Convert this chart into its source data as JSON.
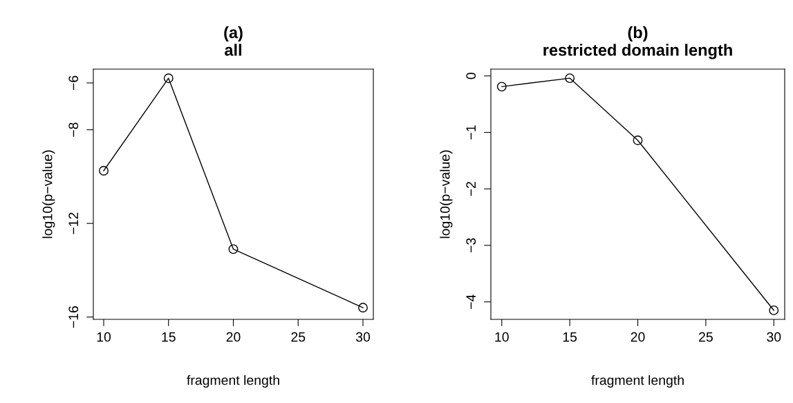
{
  "chart_data": [
    {
      "type": "line",
      "title": "(a)\nall",
      "xlabel": "fragment length",
      "ylabel": "log10(p−value)",
      "x": [
        10,
        15,
        20,
        30
      ],
      "series": [
        {
          "color": "#000000",
          "values": [
            -9.75,
            -5.8,
            -13.1,
            -15.6
          ]
        }
      ],
      "xlim": [
        9.2,
        30.8
      ],
      "ylim": [
        -16.1,
        -5.41
      ],
      "xticks": [
        10,
        15,
        20,
        25,
        30
      ],
      "yticks": [
        {
          "value": -6,
          "label": "−6"
        },
        {
          "value": -8,
          "label": "−8"
        },
        {
          "value": -12,
          "label": "−12"
        },
        {
          "value": -16,
          "label": "−16"
        }
      ],
      "marker": "circle",
      "line_style": "solid",
      "grid": false
    },
    {
      "type": "line",
      "title": "(b)\nrestricted domain length",
      "xlabel": "fragment length",
      "ylabel": "log10(p−value)",
      "x": [
        10,
        15,
        20,
        30
      ],
      "series": [
        {
          "color": "#000000",
          "values": [
            -0.19,
            -0.04,
            -1.14,
            -4.15
          ]
        }
      ],
      "xlim": [
        9.2,
        30.8
      ],
      "ylim": [
        -4.31,
        0.12
      ],
      "xticks": [
        10,
        15,
        20,
        25,
        30
      ],
      "yticks": [
        0,
        {
          "value": -1,
          "label": "−1"
        },
        {
          "value": -2,
          "label": "−2"
        },
        {
          "value": -3,
          "label": "−3"
        },
        {
          "value": -4,
          "label": "−4"
        }
      ],
      "marker": "circle",
      "line_style": "solid",
      "grid": false
    }
  ]
}
